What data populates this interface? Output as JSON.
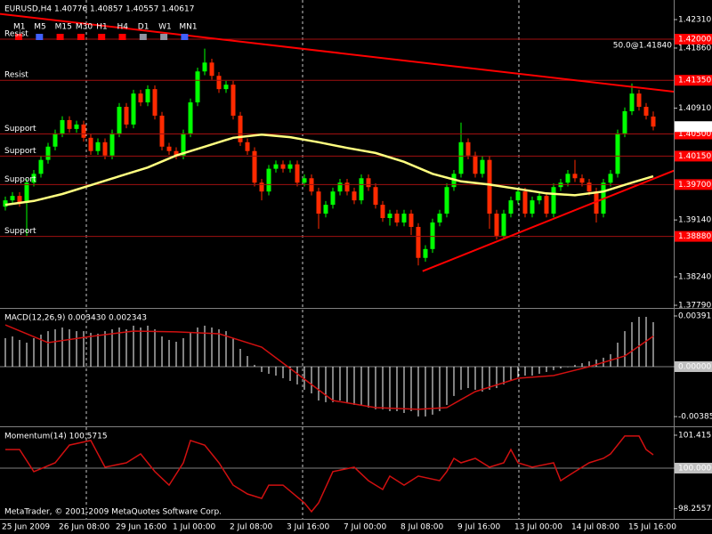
{
  "toolbar": {
    "timeframes": [
      "M1",
      "M5",
      "M15",
      "M30",
      "H1",
      "H4",
      "D1",
      "W1",
      "MN1"
    ]
  },
  "chart_data": [
    {
      "type": "candlestick",
      "title": "EURUSD,H4  1.40776 1.40857 1.40557 1.40617",
      "categories": [
        "25 Jun 2009",
        null,
        null,
        null,
        null,
        null,
        null,
        null,
        "26 Jun 08:00",
        null,
        null,
        null,
        null,
        null,
        null,
        null,
        "29 Jun 16:00",
        null,
        null,
        null,
        null,
        null,
        null,
        null,
        "1 Jul 00:00",
        null,
        null,
        null,
        null,
        null,
        null,
        null,
        "2 Jul 08:00",
        null,
        null,
        null,
        null,
        null,
        null,
        null,
        "3 Jul 16:00",
        null,
        null,
        null,
        null,
        null,
        null,
        null,
        "7 Jul 00:00",
        null,
        null,
        null,
        null,
        null,
        null,
        null,
        "8 Jul 08:00",
        null,
        null,
        null,
        null,
        null,
        null,
        null,
        "9 Jul 16:00",
        null,
        null,
        null,
        null,
        null,
        null,
        null,
        "13 Jul 00:00",
        null,
        null,
        null,
        null,
        null,
        null,
        null,
        "14 Jul 08:00",
        null,
        null,
        null,
        null,
        null,
        null,
        null,
        "15 Jul 16:00",
        null,
        null,
        null
      ],
      "open": [
        1.3935,
        1.3945,
        1.3952,
        1.3941,
        1.3973,
        1.3987,
        1.4009,
        1.403,
        1.4051,
        1.4072,
        1.4058,
        1.4065,
        1.4044,
        1.4023,
        1.4037,
        1.4016,
        1.4051,
        1.4093,
        1.4065,
        1.4114,
        1.41,
        1.4121,
        1.4079,
        1.403,
        1.4023,
        1.4016,
        1.4051,
        1.41,
        1.4149,
        1.4163,
        1.4142,
        1.4121,
        1.4128,
        1.4079,
        1.4037,
        1.4023,
        1.3973,
        1.3959,
        1.3995,
        1.4002,
        1.3995,
        1.4002,
        1.3973,
        1.398,
        1.3959,
        1.3924,
        1.3938,
        1.3959,
        1.3973,
        1.3959,
        1.3945,
        1.398,
        1.3966,
        1.3938,
        1.3917,
        1.3924,
        1.391,
        1.3924,
        1.3903,
        1.3854,
        1.3868,
        1.391,
        1.3924,
        1.3966,
        1.3987,
        1.4037,
        1.4016,
        1.3987,
        1.4009,
        1.3924,
        1.3889,
        1.3924,
        1.3945,
        1.3959,
        1.3924,
        1.3945,
        1.3952,
        1.3924,
        1.3966,
        1.3973,
        1.3987,
        1.398,
        1.3973,
        1.3959,
        1.3924,
        1.3973,
        1.3987,
        1.4051,
        1.4086,
        1.4114,
        1.4093,
        1.40776
      ],
      "high": [
        1.3951,
        1.3958,
        1.3958,
        1.3979,
        1.3993,
        1.4015,
        1.4036,
        1.4057,
        1.4078,
        1.4078,
        1.4071,
        1.4071,
        1.405,
        1.4043,
        1.4043,
        1.4057,
        1.4099,
        1.4099,
        1.412,
        1.412,
        1.4127,
        1.4127,
        1.4085,
        1.4036,
        1.4029,
        1.4057,
        1.4106,
        1.4155,
        1.4185,
        1.4169,
        1.4148,
        1.4134,
        1.4134,
        1.4085,
        1.4043,
        1.4029,
        1.3979,
        1.4001,
        1.4008,
        1.4008,
        1.4008,
        1.4008,
        1.3986,
        1.3986,
        1.3965,
        1.3944,
        1.3965,
        1.3979,
        1.3979,
        1.3965,
        1.3986,
        1.3986,
        1.3972,
        1.3944,
        1.393,
        1.393,
        1.393,
        1.393,
        1.3909,
        1.3874,
        1.3916,
        1.393,
        1.3972,
        1.3993,
        1.4068,
        1.4043,
        1.4022,
        1.4015,
        1.4015,
        1.393,
        1.393,
        1.3951,
        1.3965,
        1.3965,
        1.3951,
        1.3958,
        1.3958,
        1.3972,
        1.3979,
        1.3993,
        1.4009,
        1.3986,
        1.3979,
        1.3965,
        1.3979,
        1.3993,
        1.4057,
        1.4092,
        1.413,
        1.412,
        1.4099,
        1.40857
      ],
      "low": [
        1.3929,
        1.3939,
        1.3935,
        1.3888,
        1.3967,
        1.3981,
        1.4003,
        1.4024,
        1.4045,
        1.4052,
        1.4052,
        1.4038,
        1.4017,
        1.4017,
        1.401,
        1.401,
        1.4045,
        1.4059,
        1.4059,
        1.4094,
        1.4094,
        1.4073,
        1.4024,
        1.4017,
        1.401,
        1.401,
        1.4045,
        1.4094,
        1.4143,
        1.4136,
        1.4115,
        1.4115,
        1.4073,
        1.4031,
        1.4017,
        1.3967,
        1.3945,
        1.3953,
        1.3989,
        1.3989,
        1.3989,
        1.3967,
        1.3967,
        1.3953,
        1.39,
        1.3918,
        1.3932,
        1.3953,
        1.3953,
        1.3939,
        1.3939,
        1.396,
        1.3932,
        1.3911,
        1.3905,
        1.3904,
        1.3904,
        1.389,
        1.3842,
        1.3848,
        1.3862,
        1.3904,
        1.3918,
        1.396,
        1.3981,
        1.401,
        1.3981,
        1.3981,
        1.39,
        1.3883,
        1.3883,
        1.3918,
        1.3939,
        1.3918,
        1.3918,
        1.3939,
        1.3918,
        1.3918,
        1.396,
        1.3967,
        1.3974,
        1.3967,
        1.3953,
        1.391,
        1.3918,
        1.3967,
        1.3981,
        1.4045,
        1.408,
        1.4087,
        1.4073,
        1.40557
      ],
      "close": [
        1.3945,
        1.3952,
        1.3941,
        1.3973,
        1.3987,
        1.4009,
        1.403,
        1.4051,
        1.4072,
        1.4058,
        1.4065,
        1.4044,
        1.4023,
        1.4037,
        1.4016,
        1.4051,
        1.4093,
        1.4065,
        1.4114,
        1.41,
        1.4121,
        1.4079,
        1.403,
        1.4023,
        1.4016,
        1.4051,
        1.41,
        1.4149,
        1.4163,
        1.4142,
        1.4121,
        1.4128,
        1.4079,
        1.4037,
        1.4023,
        1.3973,
        1.3959,
        1.3995,
        1.4002,
        1.3995,
        1.4002,
        1.3973,
        1.398,
        1.3959,
        1.3924,
        1.3938,
        1.3959,
        1.3973,
        1.3959,
        1.3945,
        1.398,
        1.3966,
        1.3938,
        1.3917,
        1.3924,
        1.391,
        1.3924,
        1.3903,
        1.3854,
        1.3868,
        1.391,
        1.3924,
        1.3966,
        1.3987,
        1.4037,
        1.4016,
        1.3987,
        1.4009,
        1.3924,
        1.3889,
        1.3924,
        1.3945,
        1.3959,
        1.3924,
        1.3945,
        1.3952,
        1.3924,
        1.3966,
        1.3973,
        1.3987,
        1.398,
        1.3973,
        1.3959,
        1.3924,
        1.3973,
        1.3987,
        1.4051,
        1.4086,
        1.4114,
        1.4093,
        1.4079,
        1.40617
      ],
      "up_color": "#00ff00",
      "down_color": "#ff2a00",
      "ylim": [
        1.37762,
        1.4262
      ],
      "yticks": [
        {
          "value": 1.4231,
          "label": "1.42310"
        },
        {
          "value": 1.4186,
          "label": "1.41860"
        },
        {
          "value": 1.4091,
          "label": "1.40910"
        },
        {
          "value": 1.3914,
          "label": "1.39140"
        },
        {
          "value": 1.3824,
          "label": "1.38240"
        },
        {
          "value": 1.3779,
          "label": "1.37790"
        }
      ],
      "levels": [
        {
          "name": "Resist",
          "price": {
            "value": 1.42,
            "label": "1.42000"
          }
        },
        {
          "name": "Resist",
          "price": {
            "value": 1.4135,
            "label": "1.41350"
          }
        },
        {
          "name": "Support",
          "price": {
            "value": 1.405,
            "label": "1.40500"
          }
        },
        {
          "name": "Support",
          "price": {
            "value": 1.4015,
            "label": "1.40150"
          }
        },
        {
          "name": "Support",
          "price": {
            "value": 1.397,
            "label": "1.39700"
          }
        },
        {
          "name": "Support",
          "price": {
            "value": 1.3888,
            "label": "1.38880"
          }
        }
      ],
      "level_color": "#a01010",
      "level_label_color": "#ff0000",
      "annotation": "50.0@1.41840",
      "lines": [
        {
          "x": [
            0,
            4,
            8,
            12,
            16,
            20,
            24,
            28,
            32,
            36,
            40,
            44,
            48,
            52,
            56,
            60,
            64,
            68,
            72,
            76,
            80,
            84,
            88,
            91
          ],
          "values": [
            1.3938,
            1.3944,
            1.3955,
            1.3969,
            1.3983,
            1.3997,
            1.4016,
            1.403,
            1.4044,
            1.4049,
            1.4045,
            1.4037,
            1.4028,
            1.402,
            1.4006,
            1.3987,
            1.3975,
            1.397,
            1.3963,
            1.3956,
            1.3953,
            1.3959,
            1.3973,
            1.3983
          ],
          "color": "#ffff80",
          "width": 2.5
        },
        {
          "x": [
            -0.75,
            93.9
          ],
          "values": [
            1.424,
            1.4117
          ],
          "color": "#ff0000",
          "width": 2
        },
        {
          "x": [
            58.6,
            93.9
          ],
          "values": [
            1.3833,
            1.3992
          ],
          "color": "#ff0000",
          "width": 2
        }
      ]
    },
    {
      "type": "bar",
      "title": "MACD(12,26,9) 0.003430 0.002343",
      "values": [
        0.0022,
        0.00233,
        0.00206,
        0.00185,
        0.0022,
        0.00247,
        0.00274,
        0.00288,
        0.00302,
        0.00288,
        0.00274,
        0.00274,
        0.00261,
        0.00254,
        0.00274,
        0.00288,
        0.00302,
        0.00288,
        0.00316,
        0.00302,
        0.00316,
        0.00288,
        0.00233,
        0.00206,
        0.00192,
        0.0022,
        0.00261,
        0.00302,
        0.00316,
        0.00302,
        0.00288,
        0.00274,
        0.0022,
        0.00137,
        0.00082,
        0.00014,
        -0.00041,
        -0.00055,
        -0.00069,
        -0.00089,
        -0.0011,
        -0.00137,
        -0.00178,
        -0.00206,
        -0.00261,
        -0.00274,
        -0.00274,
        -0.00261,
        -0.00274,
        -0.00295,
        -0.00295,
        -0.00316,
        -0.00329,
        -0.00329,
        -0.00343,
        -0.00343,
        -0.00357,
        -0.00343,
        -0.00384,
        -0.00384,
        -0.0037,
        -0.00343,
        -0.00295,
        -0.00226,
        -0.00178,
        -0.00165,
        -0.00178,
        -0.00192,
        -0.00178,
        -0.00165,
        -0.00137,
        -0.0011,
        -0.00082,
        -0.00069,
        -0.00069,
        -0.00055,
        -0.00041,
        -0.00027,
        -0.00014,
        0,
        0.00014,
        0.00027,
        0.00041,
        0.00055,
        0.00069,
        0.00096,
        0.00185,
        0.00274,
        0.00343,
        0.00384,
        0.00384,
        0.00343
      ],
      "color": "#ffffff",
      "reference_line": 0,
      "ylim": [
        -0.00453,
        0.00439
      ],
      "yticks": [
        0.00391,
        {
          "value": 0,
          "label": "0.00000"
        },
        -0.00385
      ],
      "lines": [
        {
          "x": [
            0,
            6,
            12,
            18,
            24,
            30,
            36,
            41,
            46,
            52,
            58,
            62,
            66,
            72,
            77,
            82,
            87,
            91
          ],
          "values": [
            0.00322,
            0.00185,
            0.00233,
            0.00274,
            0.00268,
            0.00254,
            0.00151,
            -0.00055,
            -0.00261,
            -0.00316,
            -0.00329,
            -0.00316,
            -0.00192,
            -0.00089,
            -0.00069,
            0,
            0.00082,
            0.002343
          ],
          "color": "#d01010",
          "width": 1.5
        }
      ]
    },
    {
      "type": "line",
      "title": "Momentum(14) 100.5715",
      "x": [
        0,
        2,
        4,
        7,
        9,
        12,
        14,
        17,
        19,
        21,
        23,
        25,
        26,
        28,
        30,
        32,
        34,
        36,
        37,
        39,
        42,
        43,
        44,
        46,
        49,
        51,
        53,
        54,
        56,
        58,
        61,
        62,
        63,
        64,
        66,
        68,
        70,
        71,
        72,
        74,
        77,
        78,
        80,
        82,
        84,
        85,
        87,
        89,
        90,
        91
      ],
      "values": [
        100.8,
        100.8,
        99.85,
        100.23,
        100.99,
        101.19,
        100.04,
        100.23,
        100.61,
        99.85,
        99.27,
        100.23,
        101.19,
        100.99,
        100.23,
        99.27,
        98.89,
        98.7,
        99.27,
        99.27,
        98.51,
        98.13,
        98.51,
        99.85,
        100.04,
        99.46,
        99.08,
        99.66,
        99.27,
        99.66,
        99.46,
        99.85,
        100.42,
        100.23,
        100.42,
        100.04,
        100.23,
        100.8,
        100.23,
        100.04,
        100.23,
        99.46,
        99.85,
        100.23,
        100.42,
        100.61,
        101.38,
        101.38,
        100.8,
        100.5715
      ],
      "color": "#d01010",
      "reference_line": 100,
      "ylim": [
        97.82,
        101.72
      ],
      "yticks": [
        101.415,
        {
          "value": 100,
          "label": "100.0000"
        },
        98.2557
      ],
      "footer": "MetaTrader, © 2001-2009 MetaQuotes Software Corp."
    }
  ]
}
